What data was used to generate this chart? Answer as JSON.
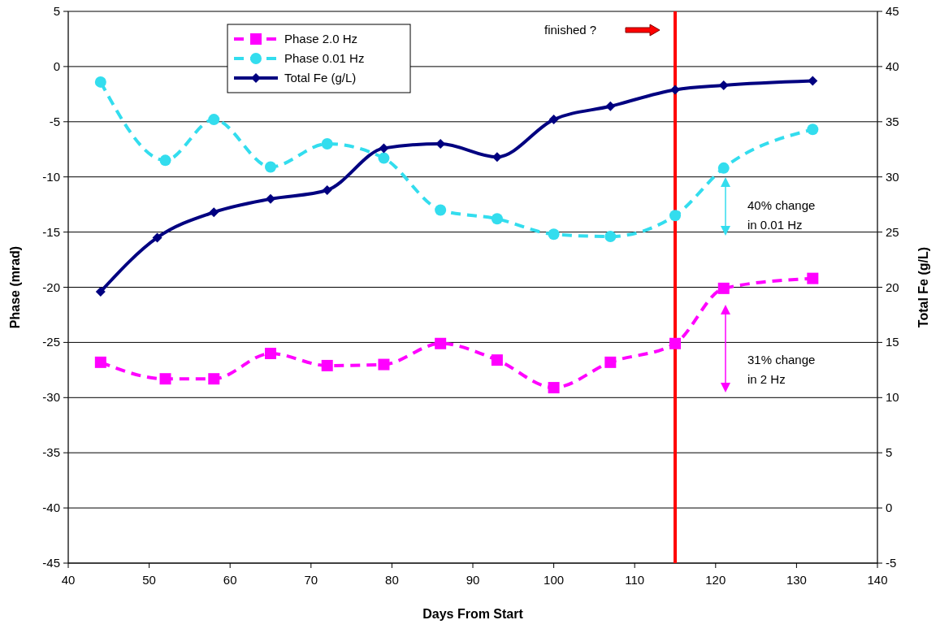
{
  "chart_data": {
    "type": "line",
    "xlabel": "Days From Start",
    "ylabel": "Phase (mrad)",
    "y2label": "Total Fe (g/L)",
    "xlim": [
      40,
      140
    ],
    "xticks": [
      40,
      50,
      60,
      70,
      80,
      90,
      100,
      110,
      120,
      130,
      140
    ],
    "ylim": [
      -45,
      5
    ],
    "yticks": [
      -45,
      -40,
      -35,
      -30,
      -25,
      -20,
      -15,
      -10,
      -5,
      0,
      5
    ],
    "y2lim": [
      -5,
      45
    ],
    "y2ticks": [
      -5,
      0,
      5,
      10,
      15,
      20,
      25,
      30,
      35,
      40,
      45
    ],
    "grid": "y",
    "legend": "top left",
    "series": [
      {
        "name": "Phase 2.0 Hz",
        "color": "#ff00ff",
        "marker": "square",
        "line_style": "dashed",
        "x": [
          44,
          52,
          58,
          65,
          72,
          79,
          86,
          93,
          100,
          107,
          115,
          121,
          132
        ],
        "values": [
          -26.8,
          -28.3,
          -28.3,
          -26.0,
          -27.1,
          -27.0,
          -25.1,
          -26.6,
          -29.1,
          -26.8,
          -25.1,
          -20.1,
          -19.2
        ]
      },
      {
        "name": "Phase 0.01 Hz",
        "color": "#33ddee",
        "marker": "circle",
        "line_style": "dashed",
        "x": [
          44,
          52,
          58,
          65,
          72,
          79,
          86,
          93,
          100,
          107,
          115,
          121,
          132
        ],
        "values": [
          -1.4,
          -8.5,
          -4.8,
          -9.1,
          -7.0,
          -8.3,
          -13.0,
          -13.8,
          -15.2,
          -15.4,
          -13.5,
          -9.2,
          -5.7
        ]
      },
      {
        "name": "Total Fe (g/L)",
        "color": "#000080",
        "marker": "diamond",
        "line_style": "solid",
        "axis": "y2",
        "x": [
          44,
          51,
          58,
          65,
          72,
          79,
          86,
          93,
          100,
          107,
          115,
          121,
          132
        ],
        "values": [
          19.6,
          24.5,
          26.8,
          28.0,
          28.8,
          32.6,
          33.0,
          31.8,
          35.2,
          36.4,
          37.9,
          38.3,
          38.7
        ]
      }
    ],
    "ref_lines": [
      {
        "axis": "x",
        "value": 115,
        "color": "#ff0000",
        "line_style": "solid"
      }
    ],
    "annotations": [
      "finished ?",
      "40% change\nin 0.01 Hz",
      "31% change\nin 2 Hz"
    ]
  }
}
